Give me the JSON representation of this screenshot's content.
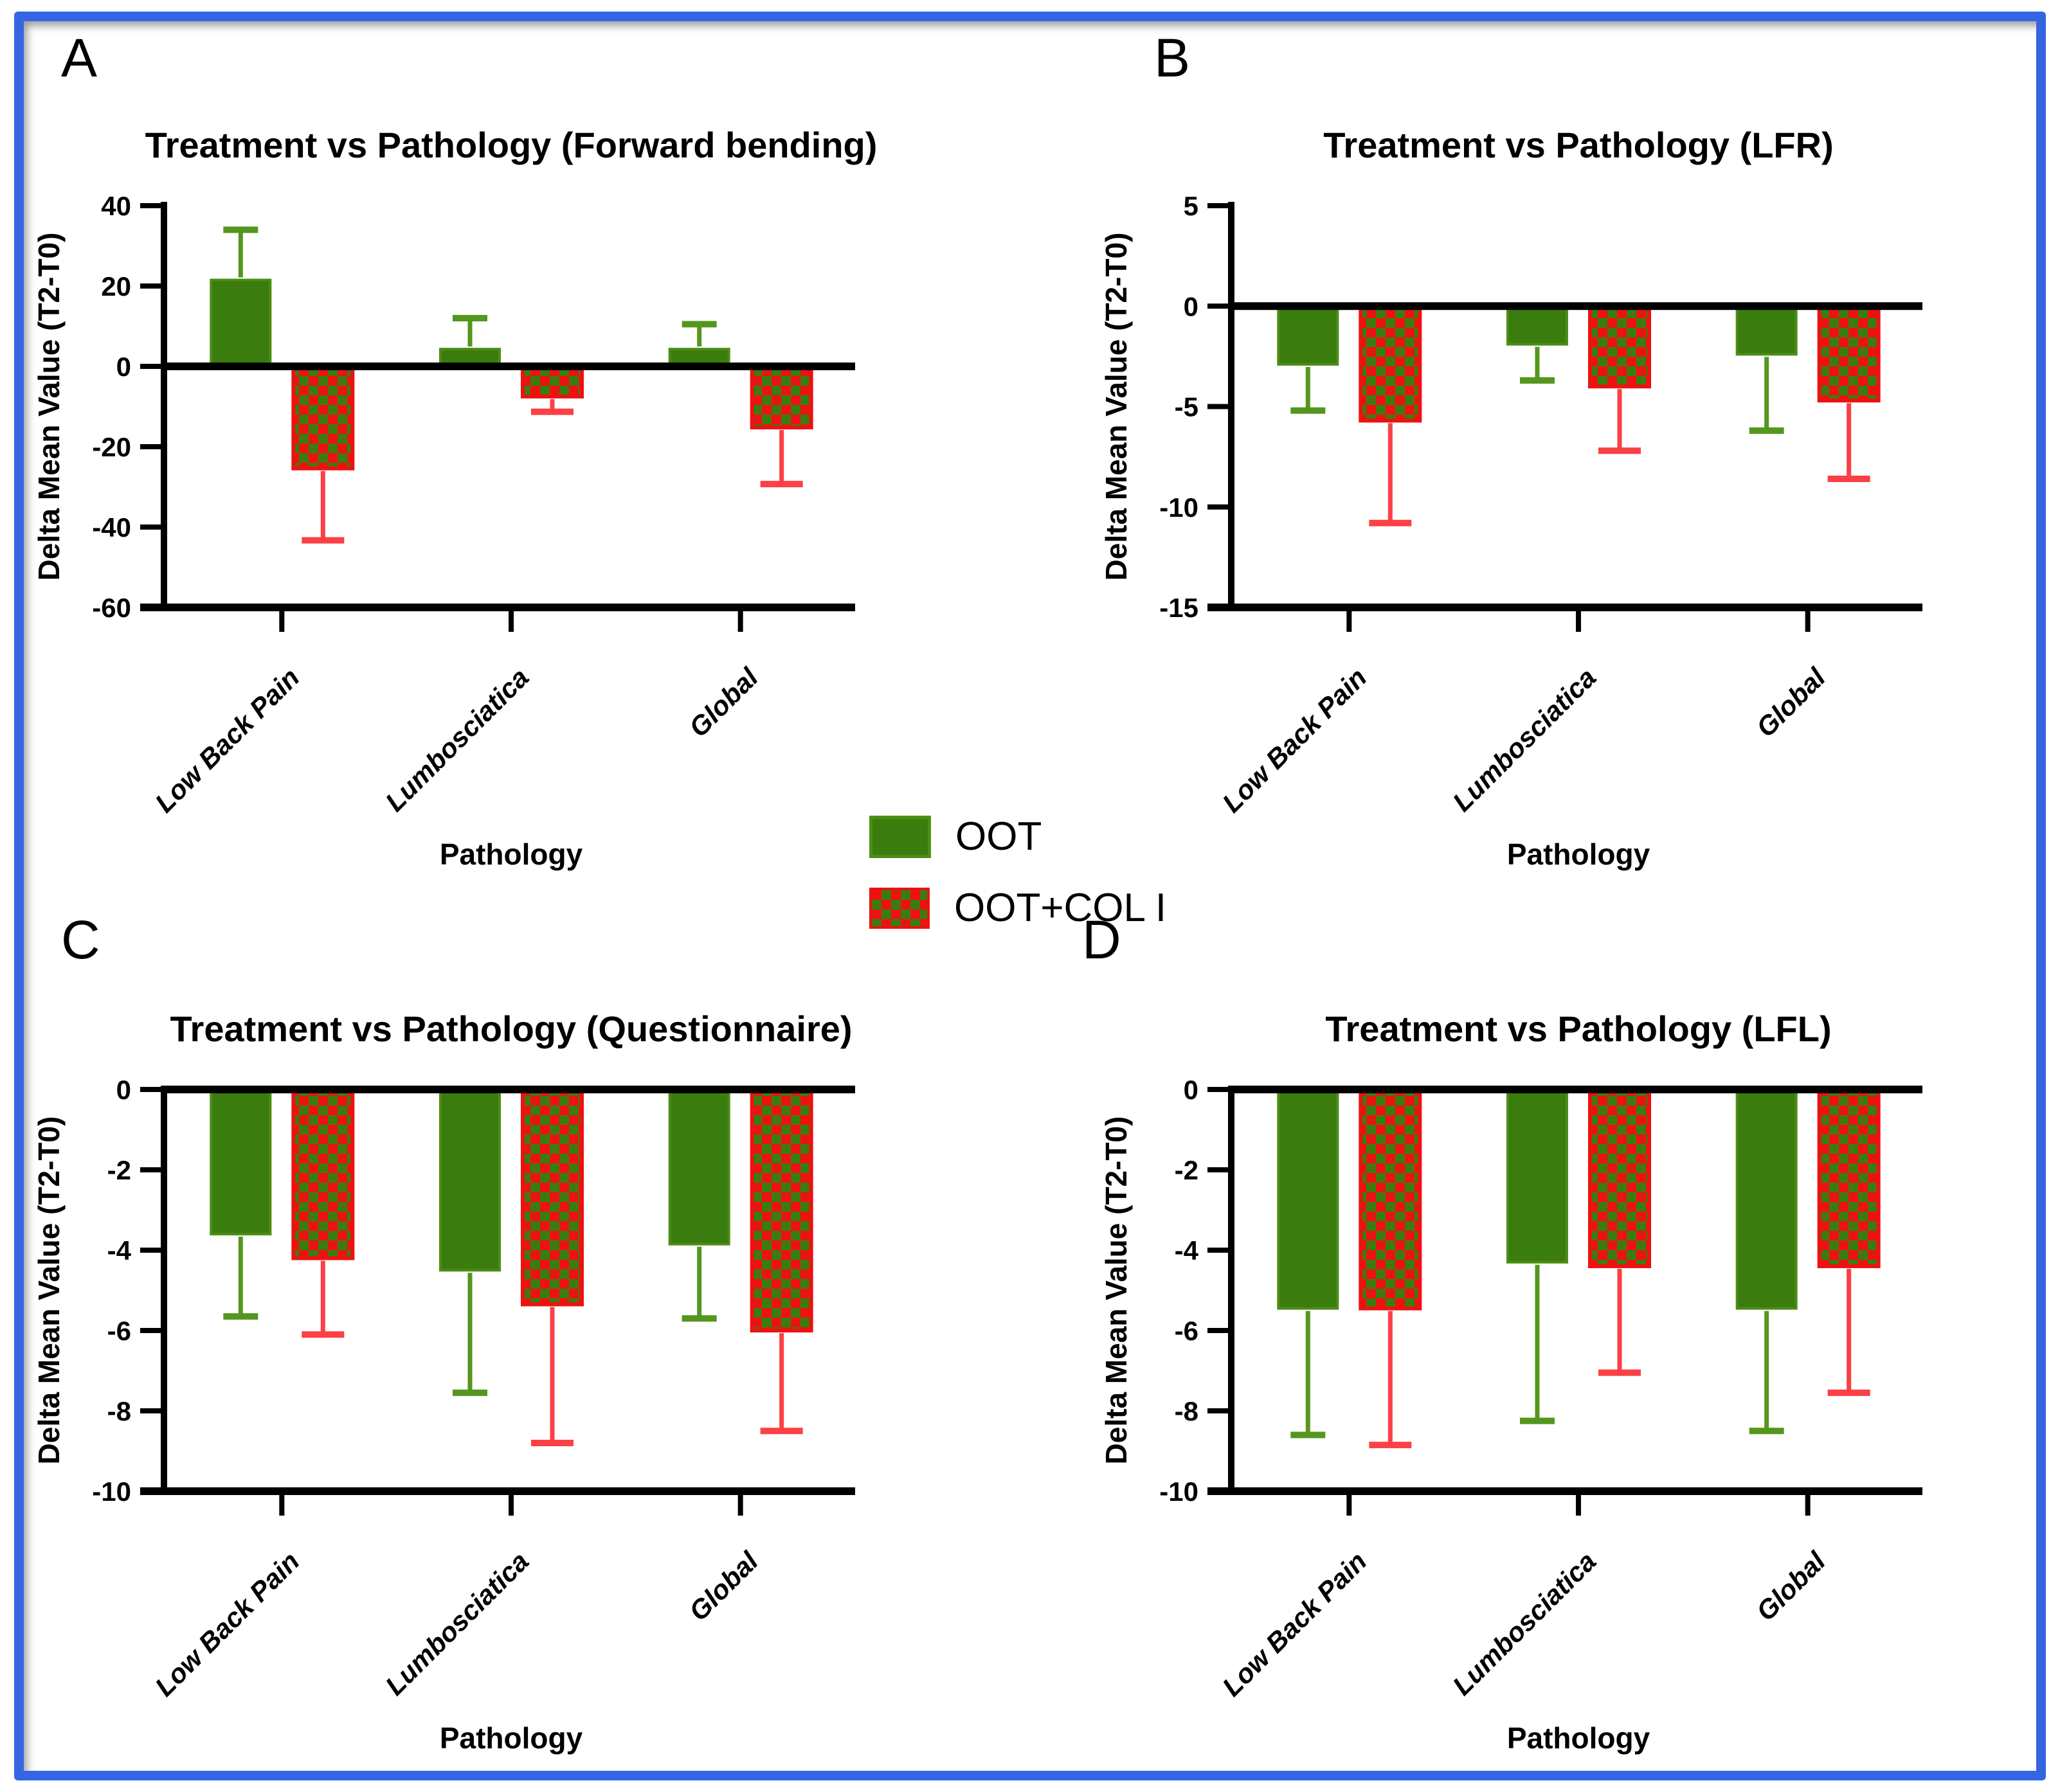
{
  "figure": {
    "border_color": "#3565e3",
    "background": "#ffffff"
  },
  "panels": [
    {
      "letter": "A"
    },
    {
      "letter": "B"
    },
    {
      "letter": "C"
    },
    {
      "letter": "D"
    }
  ],
  "legend": {
    "items": [
      {
        "label": "OOT",
        "color": "#3a7d0e",
        "pattern": "solid"
      },
      {
        "label": "OOT+COL I",
        "color": "#ee1111",
        "pattern": "checker",
        "checker_color": "#3a7d0e"
      }
    ]
  },
  "styles": {
    "bar_green": "#3a7d0e",
    "bar_green_edge": "#4d8c15",
    "err_green": "#55961e",
    "bar_red": "#ee1111",
    "checker_green": "#3a7d0e",
    "err_red": "#fb4046",
    "axis": "#000000"
  },
  "chart_data": [
    {
      "type": "bar",
      "panel": "A",
      "title": "Treatment vs Pathology (Forward bending)",
      "xlabel": "Pathology",
      "ylabel": "Delta Mean Value (T2-T0)",
      "ylim": [
        -60,
        40
      ],
      "yticks": [
        40,
        20,
        0,
        -20,
        -40,
        -60
      ],
      "categories": [
        "Low Back Pain",
        "Lumbosciatica",
        "Global"
      ],
      "series": [
        {
          "name": "OOT",
          "values": [
            21.5,
            4.3,
            4.3
          ],
          "errors": [
            12.5,
            7.7,
            6.2
          ]
        },
        {
          "name": "OOT+COL I",
          "values": [
            -25.4,
            -7.5,
            -15.2
          ],
          "errors": [
            17.9,
            3.8,
            14.1
          ]
        }
      ],
      "grid": false,
      "legend_position": "shared-center"
    },
    {
      "type": "bar",
      "panel": "B",
      "title": "Treatment vs Pathology (LFR)",
      "xlabel": "Pathology",
      "ylabel": "Delta Mean Value (T2-T0)",
      "ylim": [
        -15,
        5
      ],
      "yticks": [
        5,
        0,
        -5,
        -10,
        -15
      ],
      "categories": [
        "Low Back Pain",
        "Lumbosciatica",
        "Global"
      ],
      "series": [
        {
          "name": "OOT",
          "values": [
            -2.9,
            -1.9,
            -2.4
          ],
          "errors": [
            2.3,
            1.8,
            3.8
          ]
        },
        {
          "name": "OOT+COL I",
          "values": [
            -5.7,
            -4.0,
            -4.7
          ],
          "errors": [
            5.1,
            3.2,
            3.9
          ]
        }
      ],
      "grid": false,
      "legend_position": "shared-center"
    },
    {
      "type": "bar",
      "panel": "C",
      "title": "Treatment vs Pathology (Questionnaire)",
      "xlabel": "Pathology",
      "ylabel": "Delta Mean Value (T2-T0)",
      "ylim": [
        -10,
        0
      ],
      "yticks": [
        0,
        -2,
        -4,
        -6,
        -8,
        -10
      ],
      "categories": [
        "Low Back Pain",
        "Lumbosciatica",
        "Global"
      ],
      "series": [
        {
          "name": "OOT",
          "values": [
            -3.6,
            -4.5,
            -3.85
          ],
          "errors": [
            2.05,
            3.05,
            1.85
          ]
        },
        {
          "name": "OOT+COL I",
          "values": [
            -4.2,
            -5.35,
            -6.0
          ],
          "errors": [
            1.9,
            3.45,
            2.5
          ]
        }
      ],
      "grid": false,
      "legend_position": "shared-center"
    },
    {
      "type": "bar",
      "panel": "D",
      "title": "Treatment vs Pathology (LFL)",
      "xlabel": "Pathology",
      "ylabel": "Delta Mean Value (T2-T0)",
      "ylim": [
        -10,
        0
      ],
      "yticks": [
        0,
        -2,
        -4,
        -6,
        -8,
        -10
      ],
      "categories": [
        "Low Back Pain",
        "Lumbosciatica",
        "Global"
      ],
      "series": [
        {
          "name": "OOT",
          "values": [
            -5.45,
            -4.3,
            -5.45
          ],
          "errors": [
            3.15,
            3.95,
            3.05
          ]
        },
        {
          "name": "OOT+COL I",
          "values": [
            -5.45,
            -4.4,
            -4.4
          ],
          "errors": [
            3.4,
            2.65,
            3.15
          ]
        }
      ],
      "grid": false,
      "legend_position": "shared-center"
    }
  ]
}
